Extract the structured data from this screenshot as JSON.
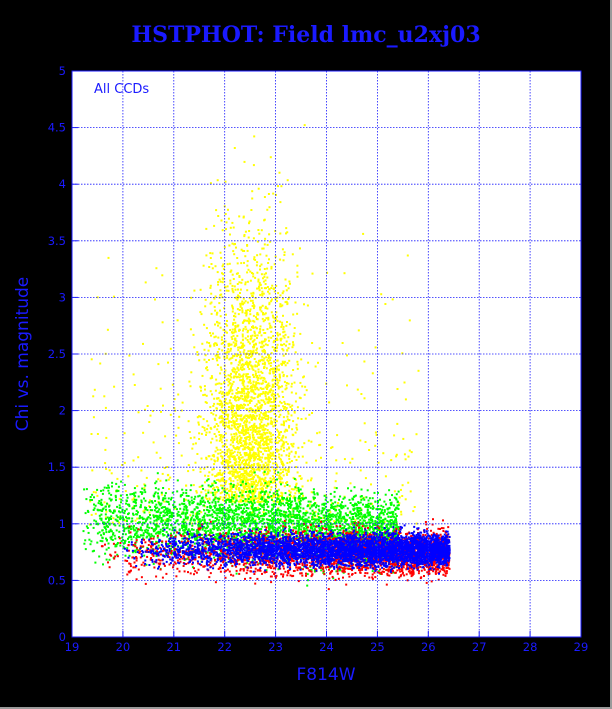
{
  "chart_data": {
    "type": "scatter",
    "title": "HSTPHOT: Field lmc_u2xj03",
    "xlabel": "F814W",
    "ylabel": "Chi vs. magnitude",
    "annotation": "All CCDs",
    "xlim": [
      19,
      29
    ],
    "ylim": [
      0,
      5
    ],
    "xticks": [
      "19",
      "20",
      "21",
      "22",
      "23",
      "24",
      "25",
      "26",
      "27",
      "28",
      "29"
    ],
    "yticks": [
      "0",
      "0.5",
      "1",
      "1.5",
      "2",
      "2.5",
      "3",
      "3.5",
      "4",
      "4.5",
      "5"
    ],
    "grid": true,
    "background": "#ffffff",
    "axis_color": "#1a1aff",
    "series": [
      {
        "color": "#ff0000",
        "values": "dense points along chi 0.55-1.0 from F814W 19 to 26.4, strongest 24.5-26.4"
      },
      {
        "color": "#0000ff",
        "values": "dense points along chi 0.6-0.95 from F814W 19.5 to 26.4, densest 23-26"
      },
      {
        "color": "#00ff00",
        "values": "points chi 0.8-1.6 from F814W 19 to 25.5, densest 21.5-24"
      },
      {
        "color": "#ffff00",
        "values": "points chi 1.0-5 concentrated F814W 21.5-23.5, sparse scatter elsewhere"
      }
    ]
  }
}
